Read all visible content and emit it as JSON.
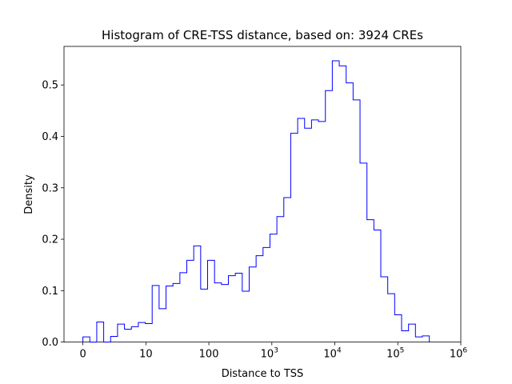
{
  "chart_data": {
    "type": "histogram",
    "title": "Histogram of CRE-TSS distance, based on: 3924 CREs",
    "xlabel": "Distance to TSS",
    "ylabel": "Density",
    "x_scale": "symlog (log10(x+1))",
    "xlim": [
      -0.3,
      6.0
    ],
    "ylim": [
      0,
      0.575
    ],
    "bin_width_log10": 0.11,
    "bin_start_log10": 0.0,
    "x_ticks": [
      {
        "value": 0,
        "label": "0"
      },
      {
        "value": 1,
        "label": "10"
      },
      {
        "value": 2,
        "label": "100"
      },
      {
        "value": 3,
        "label": "10",
        "sup": "3"
      },
      {
        "value": 4,
        "label": "10",
        "sup": "4"
      },
      {
        "value": 5,
        "label": "10",
        "sup": "5"
      },
      {
        "value": 6,
        "label": "10",
        "sup": "6"
      }
    ],
    "y_ticks": [
      {
        "value": 0.0,
        "label": "0.0"
      },
      {
        "value": 0.1,
        "label": "0.1"
      },
      {
        "value": 0.2,
        "label": "0.2"
      },
      {
        "value": 0.3,
        "label": "0.3"
      },
      {
        "value": 0.4,
        "label": "0.4"
      },
      {
        "value": 0.5,
        "label": "0.5"
      }
    ],
    "densities": [
      0.01,
      0.0,
      0.039,
      0.0,
      0.011,
      0.035,
      0.025,
      0.03,
      0.038,
      0.036,
      0.11,
      0.065,
      0.109,
      0.114,
      0.135,
      0.159,
      0.187,
      0.103,
      0.159,
      0.115,
      0.112,
      0.129,
      0.134,
      0.099,
      0.146,
      0.168,
      0.184,
      0.21,
      0.244,
      0.281,
      0.406,
      0.435,
      0.416,
      0.432,
      0.429,
      0.489,
      0.547,
      0.537,
      0.504,
      0.471,
      0.348,
      0.238,
      0.218,
      0.127,
      0.094,
      0.053,
      0.022,
      0.035,
      0.01,
      0.012
    ],
    "line_color": "#0000ff"
  }
}
